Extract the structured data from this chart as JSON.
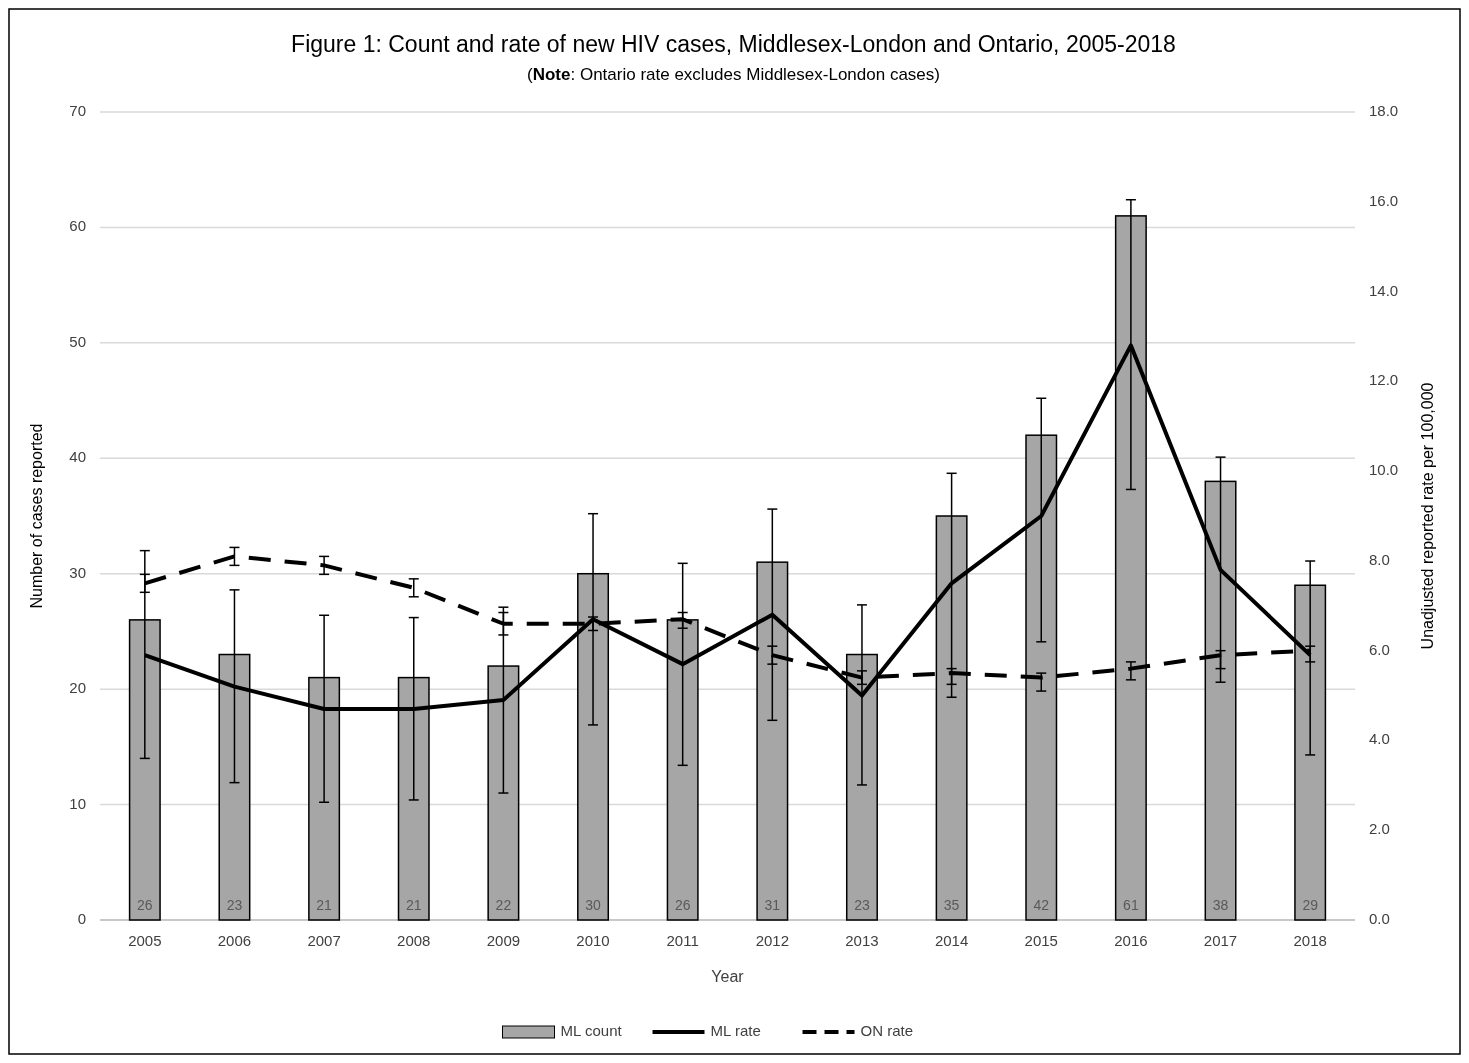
{
  "chart_data": {
    "type": "bar",
    "title": "Figure 1: Count and rate of new HIV cases, Middlesex-London and Ontario, 2005-2018",
    "subtitle": "(Note: Ontario rate excludes Middlesex-London cases)",
    "xlabel": "Year",
    "ylabel": "Number of cases reported",
    "y2label": "Unadjusted reported rate per 100,000",
    "categories": [
      "2005",
      "2006",
      "2007",
      "2008",
      "2009",
      "2010",
      "2011",
      "2012",
      "2013",
      "2014",
      "2015",
      "2016",
      "2017",
      "2018"
    ],
    "series": [
      {
        "name": "ML count",
        "color": "#a6a6a6",
        "values": [
          26,
          23,
          21,
          21,
          22,
          30,
          26,
          31,
          23,
          35,
          42,
          61,
          38,
          29
        ],
        "value_labels": [
          "26",
          "23",
          "21",
          "21",
          "22",
          "30",
          "26",
          "31",
          "23",
          "35",
          "42",
          "61",
          "38",
          "29"
        ],
        "errors": [
          [
            14,
            32
          ],
          [
            11.9,
            28.6
          ],
          [
            10.2,
            26.4
          ],
          [
            10.4,
            26.2
          ],
          [
            11,
            27.1
          ],
          [
            16.9,
            35.2
          ],
          [
            13.4,
            30.9
          ],
          [
            17.3,
            35.6
          ],
          [
            11.7,
            27.3
          ],
          [
            19.3,
            38.7
          ],
          [
            24.1,
            45.2
          ],
          [
            37.3,
            62.4
          ],
          [
            20.6,
            40.1
          ],
          [
            14.3,
            31.1
          ]
        ]
      },
      {
        "name": "ML rate",
        "type": "line",
        "axis": "y2",
        "color": "#000000",
        "line_style": "solid",
        "values": [
          5.9,
          5.2,
          4.7,
          4.7,
          4.9,
          6.7,
          5.7,
          6.8,
          5.0,
          7.5,
          9.0,
          12.8,
          7.8,
          5.9
        ]
      },
      {
        "name": "ON rate",
        "type": "line",
        "axis": "y2",
        "color": "#000000",
        "line_style": "dashed",
        "values": [
          7.5,
          8.1,
          7.9,
          7.4,
          6.6,
          6.6,
          6.7,
          5.9,
          5.4,
          5.5,
          5.4,
          5.6,
          5.9,
          6.0
        ],
        "errors": [
          [
            7.3,
            7.7
          ],
          [
            7.9,
            8.3
          ],
          [
            7.7,
            8.1
          ],
          [
            7.2,
            7.6
          ],
          [
            6.35,
            6.85
          ],
          [
            6.45,
            6.75
          ],
          [
            6.5,
            6.85
          ],
          [
            5.7,
            6.1
          ],
          [
            5.25,
            5.55
          ],
          [
            5.25,
            5.6
          ],
          [
            5.1,
            5.5
          ],
          [
            5.35,
            5.75
          ],
          [
            5.6,
            6.0
          ],
          [
            5.75,
            6.1
          ]
        ]
      }
    ],
    "ylim": [
      0,
      70
    ],
    "yticks": [
      0,
      10,
      20,
      30,
      40,
      50,
      60,
      70
    ],
    "y2lim": [
      0,
      18
    ],
    "y2ticks": [
      {
        "value": 0,
        "label": "0.0"
      },
      {
        "value": 2,
        "label": "2.0"
      },
      {
        "value": 4,
        "label": "4.0"
      },
      {
        "value": 6,
        "label": "6.0"
      },
      {
        "value": 8,
        "label": "8.0"
      },
      {
        "value": 10,
        "label": "10.0"
      },
      {
        "value": 12,
        "label": "12.0"
      },
      {
        "value": 14,
        "label": "14.0"
      },
      {
        "value": 16,
        "label": "16.0"
      },
      {
        "value": 18,
        "label": "18.0"
      }
    ],
    "grid": "y",
    "legend": "bottom"
  }
}
